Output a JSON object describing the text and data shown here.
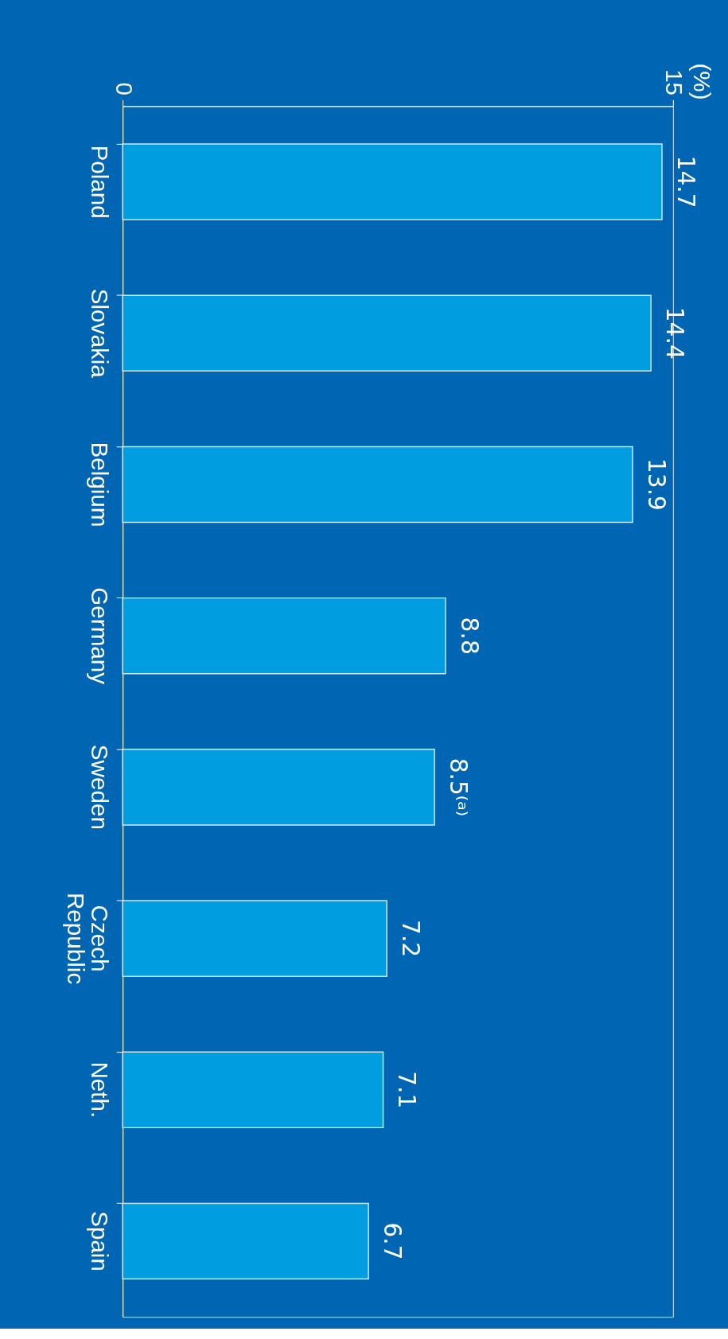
{
  "chart_data": {
    "type": "bar",
    "orientation": "horizontal",
    "annotations": [
      "(%)"
    ],
    "categories": [
      "Poland",
      "Slovakia",
      "Belgium",
      "Germany",
      "Sweden",
      "Czech Republic",
      "Neth.",
      "Spain"
    ],
    "values": [
      14.7,
      14.4,
      13.9,
      8.8,
      8.5,
      7.2,
      7.1,
      6.7
    ],
    "value_labels": [
      "14.7",
      "14.4",
      "13.9",
      "8.8",
      "8.5⁽ᵃ⁾",
      "7.2",
      "7.1",
      "6.7"
    ],
    "color": "#009ee0",
    "xlim": [
      0,
      15
    ],
    "xticks": [
      0,
      15
    ],
    "grid": false
  }
}
